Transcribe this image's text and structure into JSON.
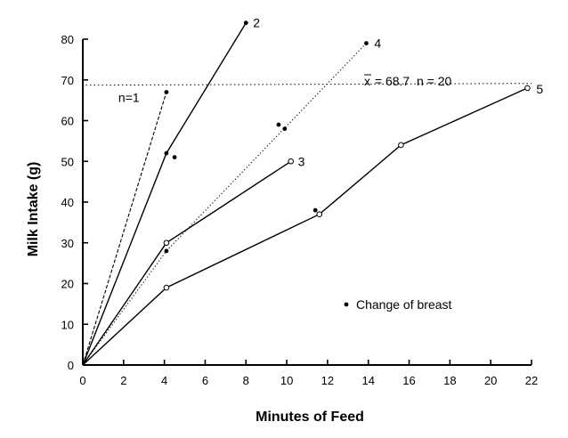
{
  "chart_data": {
    "type": "line",
    "title": "",
    "xlabel": "Minutes of Feed",
    "ylabel": "Milk Intake (g)",
    "xlim": [
      0,
      22
    ],
    "ylim": [
      0,
      80
    ],
    "x_ticks": [
      0,
      2,
      4,
      6,
      8,
      10,
      12,
      14,
      16,
      18,
      20,
      22
    ],
    "y_ticks": [
      0,
      10,
      20,
      30,
      40,
      50,
      60,
      70,
      80
    ],
    "grid": false,
    "series": [
      {
        "name": "1",
        "label": "n=1",
        "style": "dashed",
        "x": [
          0,
          4.1
        ],
        "y": [
          0,
          67
        ],
        "markers": [
          "none",
          "filled"
        ]
      },
      {
        "name": "2",
        "label": "2",
        "style": "solid",
        "x": [
          0,
          4.1,
          8
        ],
        "y": [
          0,
          52,
          84
        ],
        "markers": [
          "none",
          "filled",
          "filled"
        ]
      },
      {
        "name": "3",
        "label": "3",
        "style": "solid",
        "x": [
          0,
          4.1,
          10.2
        ],
        "y": [
          0,
          30,
          50
        ],
        "markers": [
          "none",
          "open",
          "open"
        ]
      },
      {
        "name": "4",
        "label": "4",
        "style": "dotted",
        "x": [
          0,
          4.1,
          13.9
        ],
        "y": [
          0,
          28,
          79
        ],
        "markers": [
          "none",
          "filled",
          "filled"
        ]
      },
      {
        "name": "5",
        "label": "5",
        "style": "solid",
        "x": [
          0,
          4.1,
          11.6,
          15.6,
          21.8
        ],
        "y": [
          0,
          19,
          37,
          54,
          68
        ],
        "markers": [
          "none",
          "open",
          "open",
          "open",
          "open"
        ]
      }
    ],
    "breast_change_points": [
      {
        "x": 4.5,
        "y": 51
      },
      {
        "x": 9.6,
        "y": 59
      },
      {
        "x": 9.9,
        "y": 58
      },
      {
        "x": 11.4,
        "y": 38
      }
    ],
    "mean_line": {
      "y": 68.7,
      "label_prefix": "x",
      "label": " = 68.7  n = 20"
    },
    "legend": {
      "marker": "filled-dot",
      "text": "Change of breast",
      "placement": "center-right"
    }
  }
}
